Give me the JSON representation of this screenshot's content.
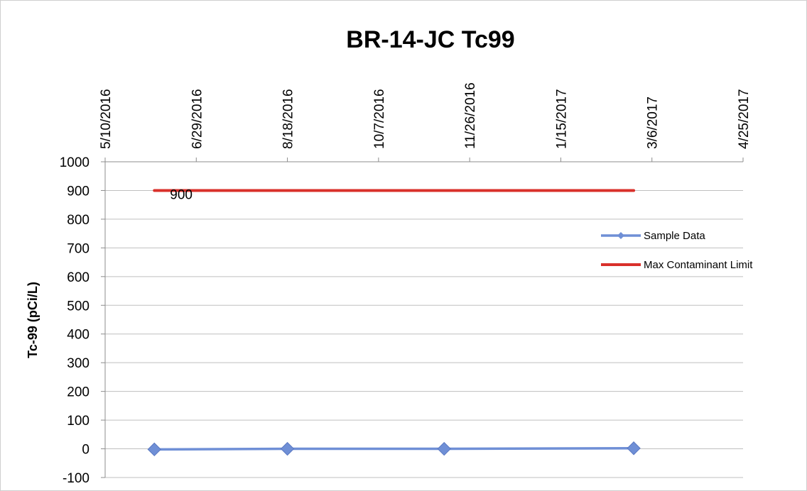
{
  "chart_data": {
    "type": "line",
    "title": "BR-14-JC Tc99",
    "xlabel": "",
    "ylabel": "Tc-99 (pCi/L)",
    "x_axis_position": "top",
    "xlim": [
      "2016-05-10",
      "2017-04-25"
    ],
    "x_tick_labels": [
      "5/10/2016",
      "6/29/2016",
      "8/18/2016",
      "10/7/2016",
      "11/26/2016",
      "1/15/2017",
      "3/6/2017",
      "4/25/2017"
    ],
    "ylim": [
      -100,
      1000
    ],
    "y_ticks": [
      -100,
      0,
      100,
      200,
      300,
      400,
      500,
      600,
      700,
      800,
      900,
      1000
    ],
    "grid": true,
    "legend_position": "right",
    "series": [
      {
        "name": "Sample Data",
        "color": "#6f8fd6",
        "marker": "diamond",
        "x": [
          "2016-06-06",
          "2016-08-18",
          "2016-11-12",
          "2017-02-24"
        ],
        "y": [
          -2,
          0,
          0,
          2
        ]
      },
      {
        "name": "Max Contaminant Limit",
        "color": "#d9302b",
        "marker": "none",
        "x": [
          "2016-06-06",
          "2017-02-24"
        ],
        "y": [
          900,
          900
        ],
        "data_label": "900"
      }
    ]
  }
}
